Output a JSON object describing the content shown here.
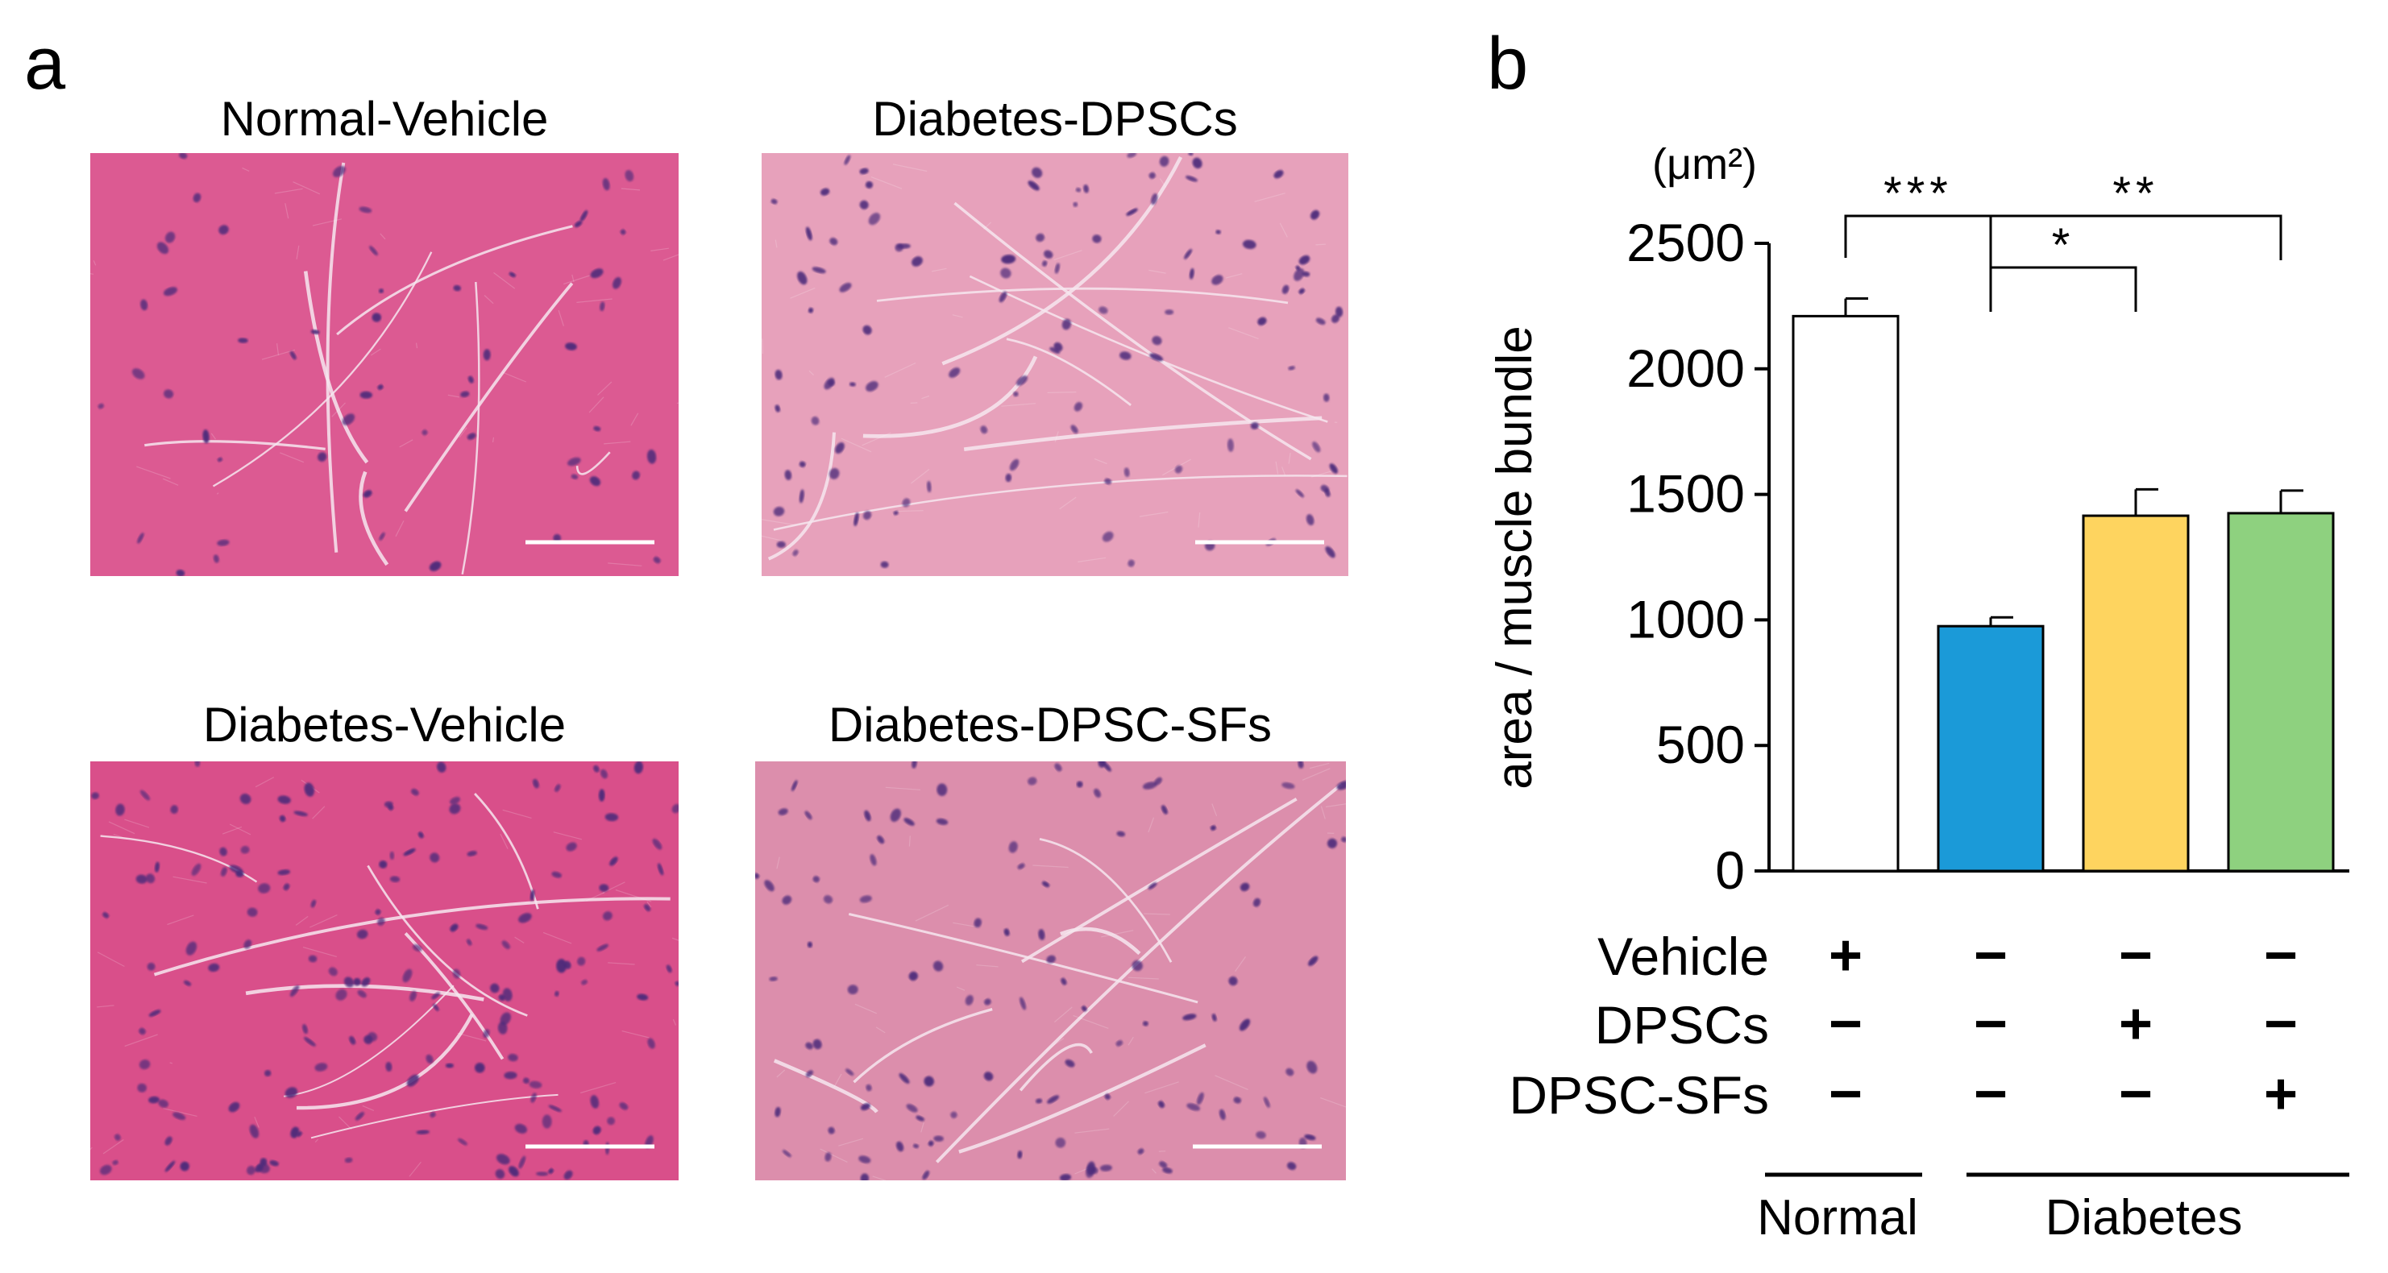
{
  "panel_a": {
    "label": "a",
    "histology_color": "#d9588f",
    "images": [
      {
        "title": "Normal-Vehicle",
        "tint": "#dc5a92",
        "nuclei_density": "low",
        "depiction": "H&E-stained muscle cross-section with scale bar"
      },
      {
        "title": "Diabetes-DPSCs",
        "tint": "#e7a1bb",
        "nuclei_density": "medium",
        "depiction": "H&E-stained muscle cross-section with scale bar"
      },
      {
        "title": "Diabetes-Vehicle",
        "tint": "#d94f8a",
        "nuclei_density": "high",
        "depiction": "H&E-stained muscle cross-section with scale bar"
      },
      {
        "title": "Diabetes-DPSC-SFs",
        "tint": "#dc8eac",
        "nuclei_density": "medium",
        "depiction": "H&E-stained muscle cross-section with scale bar"
      }
    ]
  },
  "panel_b": {
    "label": "b",
    "chart_data": {
      "type": "bar",
      "title": "",
      "ylabel": "area / muscle bundle",
      "yunit": "(μm²)",
      "ylim": [
        0,
        2500
      ],
      "yticks": [
        0,
        500,
        1000,
        1500,
        2000,
        2500
      ],
      "grid": false,
      "bars": [
        {
          "value": 2210,
          "error": 70,
          "color": "#ffffff"
        },
        {
          "value": 975,
          "error": 35,
          "color": "#1b9ad8"
        },
        {
          "value": 1415,
          "error": 105,
          "color": "#fed45f"
        },
        {
          "value": 1425,
          "error": 90,
          "color": "#8ed17f"
        }
      ],
      "treatment_rows": [
        {
          "label": "Vehicle",
          "marks": [
            "+",
            "−",
            "−",
            "−"
          ]
        },
        {
          "label": "DPSCs",
          "marks": [
            "−",
            "−",
            "+",
            "−"
          ]
        },
        {
          "label": "DPSC-SFs",
          "marks": [
            "−",
            "−",
            "−",
            "+"
          ]
        }
      ],
      "groups": [
        {
          "label": "Normal",
          "bars": [
            0
          ]
        },
        {
          "label": "Diabetes",
          "bars": [
            1,
            2,
            3
          ]
        }
      ],
      "significance": [
        {
          "from": 0,
          "to": 1,
          "label": "***"
        },
        {
          "from": 1,
          "to": 2,
          "label": "*"
        },
        {
          "from": 1,
          "to": 3,
          "label": "**"
        }
      ]
    }
  }
}
